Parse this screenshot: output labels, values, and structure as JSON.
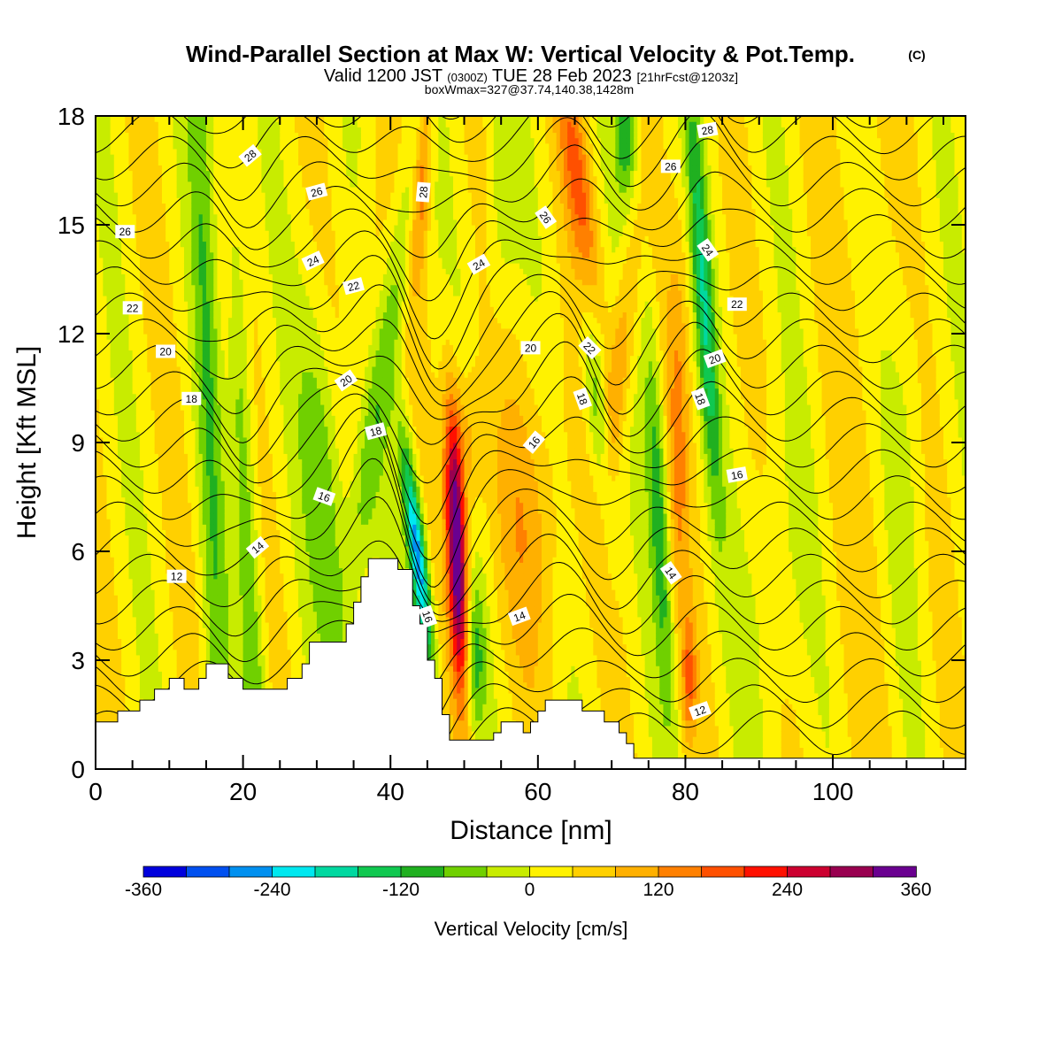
{
  "chart_data": {
    "type": "heatmap",
    "title": "Wind-Parallel Section at Max W: Vertical Velocity & Pot.Temp.",
    "title_mark": "(C)",
    "subtitle_main": "Valid 1200 JST",
    "subtitle_utc": "(0300Z)",
    "subtitle_date": "TUE 28 Feb 2023",
    "subtitle_fcst": "[21hrFcst@1203z]",
    "subtitle2": "boxWmax=327@37.74,140.38,1428m",
    "xlabel": "Distance [nm]",
    "ylabel": "Height [Kft MSL]",
    "xlim": [
      0,
      118
    ],
    "ylim": [
      0,
      18
    ],
    "x_ticks": [
      "0",
      "20",
      "40",
      "60",
      "80",
      "100"
    ],
    "y_ticks": [
      "0",
      "3",
      "6",
      "9",
      "12",
      "15",
      "18"
    ],
    "colorbar": {
      "label": "Vertical Velocity [cm/s]",
      "min": -360,
      "max": 360,
      "step": 40,
      "tick_labels": [
        "-360",
        "-240",
        "-120",
        "0",
        "120",
        "240",
        "360"
      ],
      "colors": [
        "#0000dd",
        "#0050f0",
        "#0090f0",
        "#00e8f0",
        "#00d8a0",
        "#10c850",
        "#20b020",
        "#70d000",
        "#c8ec00",
        "#fff200",
        "#ffd000",
        "#ffb000",
        "#ff8000",
        "#ff5000",
        "#ff1000",
        "#cc0030",
        "#990050",
        "#6a0090"
      ]
    },
    "terrain_kft": [
      [
        0,
        1.3
      ],
      [
        3,
        1.3
      ],
      [
        3,
        1.6
      ],
      [
        6,
        1.6
      ],
      [
        6,
        1.9
      ],
      [
        8,
        1.9
      ],
      [
        8,
        2.2
      ],
      [
        10,
        2.2
      ],
      [
        10,
        2.5
      ],
      [
        12,
        2.5
      ],
      [
        12,
        2.2
      ],
      [
        14,
        2.2
      ],
      [
        14,
        2.5
      ],
      [
        15,
        2.5
      ],
      [
        15,
        2.9
      ],
      [
        18,
        2.9
      ],
      [
        18,
        2.5
      ],
      [
        20,
        2.5
      ],
      [
        20,
        2.2
      ],
      [
        26,
        2.2
      ],
      [
        26,
        2.5
      ],
      [
        28,
        2.5
      ],
      [
        28,
        2.9
      ],
      [
        29,
        2.9
      ],
      [
        29,
        3.5
      ],
      [
        34,
        3.5
      ],
      [
        34,
        4.0
      ],
      [
        35,
        4.0
      ],
      [
        35,
        4.6
      ],
      [
        36,
        4.6
      ],
      [
        36,
        5.3
      ],
      [
        37,
        5.3
      ],
      [
        37,
        5.8
      ],
      [
        41,
        5.8
      ],
      [
        41,
        5.5
      ],
      [
        43,
        5.5
      ],
      [
        43,
        4.5
      ],
      [
        44,
        4.5
      ],
      [
        44,
        4.0
      ],
      [
        45,
        4.0
      ],
      [
        45,
        3.0
      ],
      [
        46,
        3.0
      ],
      [
        46,
        2.5
      ],
      [
        47,
        2.5
      ],
      [
        47,
        1.5
      ],
      [
        48,
        1.5
      ],
      [
        48,
        0.8
      ],
      [
        54,
        0.8
      ],
      [
        54,
        1.0
      ],
      [
        55,
        1.0
      ],
      [
        55,
        1.3
      ],
      [
        58,
        1.3
      ],
      [
        58,
        1.0
      ],
      [
        59,
        1.0
      ],
      [
        59,
        1.3
      ],
      [
        60,
        1.3
      ],
      [
        60,
        1.6
      ],
      [
        61,
        1.6
      ],
      [
        61,
        1.9
      ],
      [
        66,
        1.9
      ],
      [
        66,
        1.6
      ],
      [
        69,
        1.6
      ],
      [
        69,
        1.3
      ],
      [
        71,
        1.3
      ],
      [
        71,
        1.0
      ],
      [
        72,
        1.0
      ],
      [
        72,
        0.7
      ],
      [
        73,
        0.7
      ],
      [
        73,
        0.3
      ],
      [
        118,
        0.3
      ]
    ],
    "theta_labels": [
      {
        "text": "28",
        "x": 21,
        "y": 16.9,
        "angle": -40
      },
      {
        "text": "26",
        "x": 30,
        "y": 15.9,
        "angle": -15
      },
      {
        "text": "26",
        "x": 4,
        "y": 14.8,
        "angle": 0
      },
      {
        "text": "24",
        "x": 29.5,
        "y": 14.0,
        "angle": -25
      },
      {
        "text": "22",
        "x": 35,
        "y": 13.3,
        "angle": -15
      },
      {
        "text": "22",
        "x": 5,
        "y": 12.7,
        "angle": 0
      },
      {
        "text": "20",
        "x": 9.5,
        "y": 11.5,
        "angle": 0
      },
      {
        "text": "20",
        "x": 34,
        "y": 10.7,
        "angle": -35
      },
      {
        "text": "18",
        "x": 13,
        "y": 10.2,
        "angle": 0
      },
      {
        "text": "18",
        "x": 38,
        "y": 9.3,
        "angle": -15
      },
      {
        "text": "16",
        "x": 31,
        "y": 7.5,
        "angle": 20
      },
      {
        "text": "14",
        "x": 22,
        "y": 6.1,
        "angle": -40
      },
      {
        "text": "12",
        "x": 11,
        "y": 5.3,
        "angle": 0
      },
      {
        "text": "28",
        "x": 44.5,
        "y": 15.9,
        "angle": -85
      },
      {
        "text": "24",
        "x": 52,
        "y": 13.9,
        "angle": -30
      },
      {
        "text": "26",
        "x": 61,
        "y": 15.2,
        "angle": 55
      },
      {
        "text": "20",
        "x": 59,
        "y": 11.6,
        "angle": 0
      },
      {
        "text": "22",
        "x": 67,
        "y": 11.6,
        "angle": 45
      },
      {
        "text": "18",
        "x": 66,
        "y": 10.2,
        "angle": 70
      },
      {
        "text": "16",
        "x": 59.5,
        "y": 9.0,
        "angle": -50
      },
      {
        "text": "14",
        "x": 57.5,
        "y": 4.2,
        "angle": -20
      },
      {
        "text": "16",
        "x": 45,
        "y": 4.2,
        "angle": 70
      },
      {
        "text": "28",
        "x": 83,
        "y": 17.6,
        "angle": -10
      },
      {
        "text": "26",
        "x": 78,
        "y": 16.6,
        "angle": 0
      },
      {
        "text": "24",
        "x": 83,
        "y": 14.3,
        "angle": 55
      },
      {
        "text": "22",
        "x": 87,
        "y": 12.8,
        "angle": 0
      },
      {
        "text": "20",
        "x": 84,
        "y": 11.3,
        "angle": -20
      },
      {
        "text": "18",
        "x": 82,
        "y": 10.2,
        "angle": 70
      },
      {
        "text": "16",
        "x": 87,
        "y": 8.1,
        "angle": -10
      },
      {
        "text": "14",
        "x": 78,
        "y": 5.4,
        "angle": 55
      },
      {
        "text": "12",
        "x": 82,
        "y": 1.6,
        "angle": -20
      }
    ]
  }
}
